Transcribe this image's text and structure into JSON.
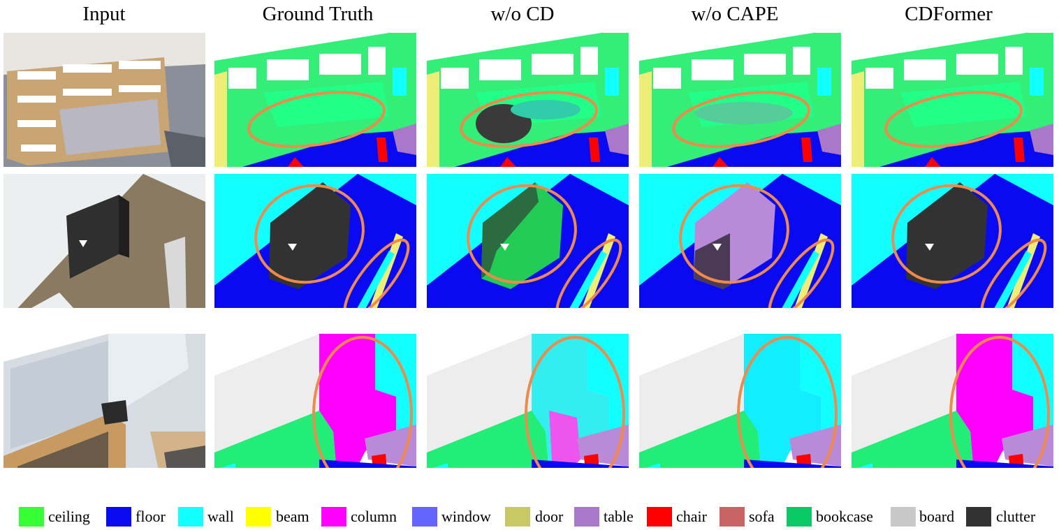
{
  "columns": [
    "Input",
    "Ground Truth",
    "w/o CD",
    "w/o CAPE",
    "CDFormer"
  ],
  "legend": [
    {
      "label": "ceiling",
      "color": "#33ff33"
    },
    {
      "label": "floor",
      "color": "#0a0af2"
    },
    {
      "label": "wall",
      "color": "#11ffff"
    },
    {
      "label": "beam",
      "color": "#ffff00"
    },
    {
      "label": "column",
      "color": "#ff00ff"
    },
    {
      "label": "window",
      "color": "#6464ff"
    },
    {
      "label": "door",
      "color": "#c8c864"
    },
    {
      "label": "table",
      "color": "#aa78c8"
    },
    {
      "label": "chair",
      "color": "#ff0000"
    },
    {
      "label": "sofa",
      "color": "#c86464"
    },
    {
      "label": "bookcase",
      "color": "#0ac864"
    },
    {
      "label": "board",
      "color": "#c8c8c8"
    },
    {
      "label": "clutter",
      "color": "#323232"
    }
  ],
  "highlight_color": "#f08a4b"
}
